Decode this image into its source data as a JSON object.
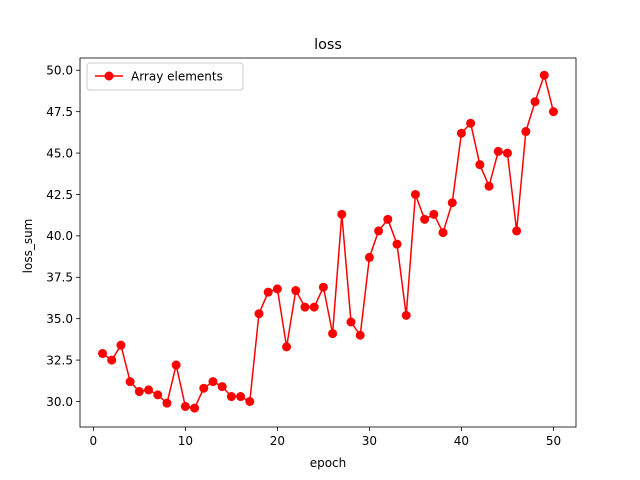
{
  "chart_data": {
    "type": "line",
    "title": "loss",
    "xlabel": "epoch",
    "ylabel": "loss_sum",
    "xlim": [
      -1.45,
      52.45
    ],
    "ylim": [
      28.46,
      50.74
    ],
    "xticks": [
      0,
      10,
      20,
      30,
      40,
      50
    ],
    "yticks": [
      30.0,
      32.5,
      35.0,
      37.5,
      40.0,
      42.5,
      45.0,
      47.5,
      50.0
    ],
    "ytick_labels": [
      "30.0",
      "32.5",
      "35.0",
      "37.5",
      "40.0",
      "42.5",
      "45.0",
      "47.5",
      "50.0"
    ],
    "grid": false,
    "legend": {
      "position": "top-left"
    },
    "series": [
      {
        "name": "Array elements",
        "color": "#ff0000",
        "marker": "circle",
        "x": [
          1,
          2,
          3,
          4,
          5,
          6,
          7,
          8,
          9,
          10,
          11,
          12,
          13,
          14,
          15,
          16,
          17,
          18,
          19,
          20,
          21,
          22,
          23,
          24,
          25,
          26,
          27,
          28,
          29,
          30,
          31,
          32,
          33,
          34,
          35,
          36,
          37,
          38,
          39,
          40,
          41,
          42,
          43,
          44,
          45,
          46,
          47,
          48,
          49,
          50
        ],
        "y": [
          32.9,
          32.5,
          33.4,
          31.2,
          30.6,
          30.7,
          30.4,
          29.9,
          32.2,
          29.7,
          29.6,
          30.8,
          31.2,
          30.9,
          30.3,
          30.3,
          30.0,
          35.3,
          36.6,
          36.8,
          33.3,
          36.7,
          35.7,
          35.7,
          36.9,
          34.1,
          41.3,
          34.8,
          34.0,
          38.7,
          40.3,
          41.0,
          39.5,
          35.2,
          42.5,
          41.0,
          41.3,
          40.2,
          42.0,
          46.2,
          46.8,
          44.3,
          43.0,
          45.1,
          45.0,
          40.3,
          46.3,
          48.1,
          49.7,
          47.5
        ]
      }
    ]
  }
}
